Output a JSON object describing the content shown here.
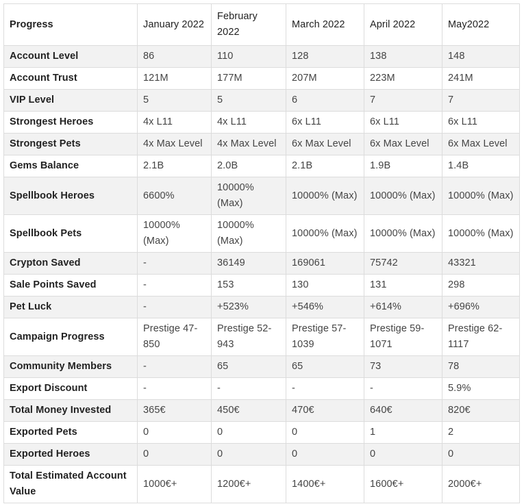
{
  "table": {
    "headers": [
      "Progress",
      "January 2022",
      "February 2022",
      "March 2022",
      "April 2022",
      "May2022"
    ],
    "rows": [
      {
        "label": "Account Level",
        "values": [
          "86",
          "110",
          "128",
          "138",
          "148"
        ]
      },
      {
        "label": "Account Trust",
        "values": [
          "121M",
          "177M",
          "207M",
          "223M",
          "241M"
        ]
      },
      {
        "label": "VIP Level",
        "values": [
          "5",
          "5",
          "6",
          "7",
          "7"
        ]
      },
      {
        "label": "Strongest Heroes",
        "values": [
          "4x L11",
          "4x L11",
          "6x L11",
          "6x L11",
          "6x L11"
        ]
      },
      {
        "label": "Strongest Pets",
        "values": [
          "4x Max Level",
          "4x Max Level",
          "6x Max Level",
          "6x Max Level",
          "6x Max Level"
        ]
      },
      {
        "label": "Gems Balance",
        "values": [
          "2.1B",
          "2.0B",
          "2.1B",
          "1.9B",
          "1.4B"
        ]
      },
      {
        "label": "Spellbook Heroes",
        "values": [
          "6600%",
          "10000% (Max)",
          "10000% (Max)",
          "10000% (Max)",
          "10000% (Max)"
        ]
      },
      {
        "label": "Spellbook Pets",
        "values": [
          "10000% (Max)",
          "10000% (Max)",
          "10000% (Max)",
          "10000% (Max)",
          "10000% (Max)"
        ]
      },
      {
        "label": "Crypton Saved",
        "values": [
          "-",
          "36149",
          "169061",
          "75742",
          "43321"
        ]
      },
      {
        "label": "Sale Points Saved",
        "values": [
          "-",
          "153",
          "130",
          "131",
          "298"
        ]
      },
      {
        "label": "Pet Luck",
        "values": [
          "-",
          "+523%",
          "+546%",
          "+614%",
          "+696%"
        ]
      },
      {
        "label": "Campaign Progress",
        "values": [
          "Prestige 47-850",
          "Prestige 52-943",
          "Prestige 57-1039",
          "Prestige 59-1071",
          "Prestige 62-1117"
        ]
      },
      {
        "label": "Community Members",
        "values": [
          "-",
          "65",
          "65",
          "73",
          "78"
        ]
      },
      {
        "label": "Export Discount",
        "values": [
          "-",
          "-",
          "-",
          "-",
          "5.9%"
        ]
      },
      {
        "label": "Total Money Invested",
        "values": [
          "365€",
          "450€",
          "470€",
          "640€",
          "820€"
        ]
      },
      {
        "label": "Exported Pets",
        "values": [
          "0",
          "0",
          "0",
          "1",
          "2"
        ]
      },
      {
        "label": "Exported Heroes",
        "values": [
          "0",
          "0",
          "0",
          "0",
          "0"
        ]
      },
      {
        "label": "Total Estimated Account Value",
        "values": [
          "1000€+",
          "1200€+",
          "1400€+",
          "1600€+",
          "2000€+"
        ]
      }
    ]
  }
}
